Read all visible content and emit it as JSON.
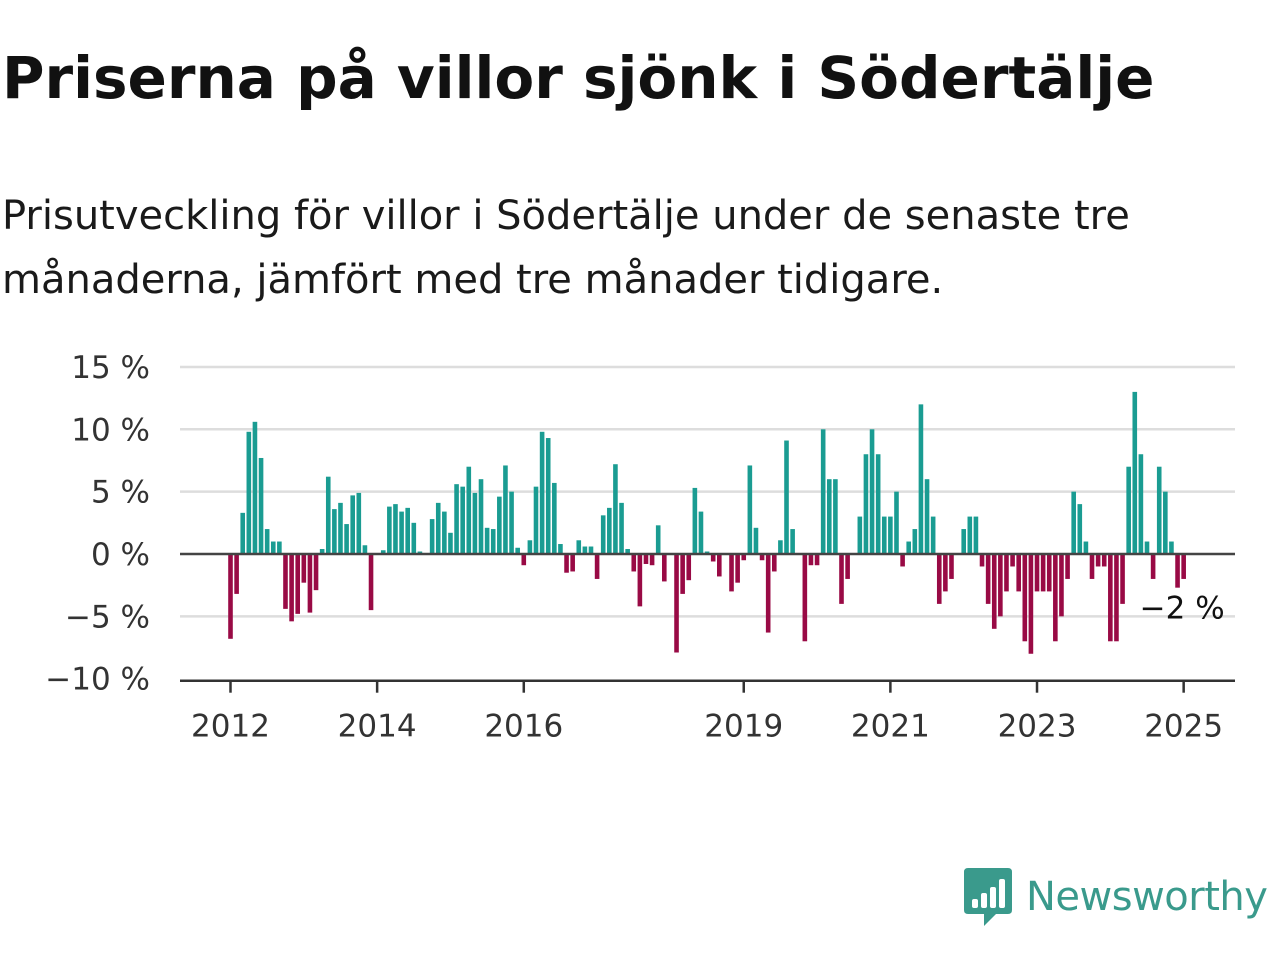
{
  "title": "Priserna på villor sjönk i Södertälje",
  "subtitle": "Prisutveckling för villor i Södertälje under de senaste tre månaderna, jämfört med tre månader tidigare.",
  "brand": "Newsworthy",
  "colors": {
    "positive": "#1a9c92",
    "negative": "#990a45",
    "gridline": "#dddddd",
    "zero_line": "#444444",
    "brand": "#3a9a8c"
  },
  "chart_data": {
    "type": "bar",
    "x_start": "2012-01",
    "frequency": "monthly",
    "y_ticks": [
      {
        "value": 15,
        "label": "15 %"
      },
      {
        "value": 10,
        "label": "10 %"
      },
      {
        "value": 5,
        "label": "5 %"
      },
      {
        "value": 0,
        "label": "0 %"
      },
      {
        "value": -5,
        "label": "−5 %"
      },
      {
        "value": -10,
        "label": "−10 %"
      }
    ],
    "x_ticks": [
      {
        "date": "2012-01",
        "label": "2012"
      },
      {
        "date": "2014-01",
        "label": "2014"
      },
      {
        "date": "2016-01",
        "label": "2016"
      },
      {
        "date": "2019-01",
        "label": "2019"
      },
      {
        "date": "2021-01",
        "label": "2021"
      },
      {
        "date": "2023-01",
        "label": "2023"
      },
      {
        "date": "2025-01",
        "label": "2025"
      }
    ],
    "ylim": [
      -10,
      15
    ],
    "grid": true,
    "last_value_label": "−2 %",
    "values": [
      -6.8,
      -3.2,
      3.3,
      9.8,
      10.6,
      7.7,
      2.0,
      1.0,
      1.0,
      -4.4,
      -5.4,
      -4.8,
      -2.3,
      -4.7,
      -2.9,
      0.4,
      6.2,
      3.6,
      4.1,
      2.4,
      4.7,
      4.9,
      0.7,
      -4.5,
      0.0,
      0.3,
      3.8,
      4.0,
      3.4,
      3.7,
      2.5,
      0.2,
      0.0,
      2.8,
      4.1,
      3.4,
      1.7,
      5.6,
      5.4,
      7.0,
      4.9,
      6.0,
      2.1,
      2.0,
      4.6,
      7.1,
      5.0,
      0.5,
      -0.9,
      1.1,
      5.4,
      9.8,
      9.3,
      5.7,
      0.8,
      -1.5,
      -1.4,
      1.1,
      0.6,
      0.6,
      -2.0,
      3.1,
      3.7,
      7.2,
      4.1,
      0.4,
      -1.4,
      -4.2,
      -0.8,
      -0.9,
      2.3,
      -2.2,
      0.0,
      -7.9,
      -3.2,
      -2.1,
      5.3,
      3.4,
      0.2,
      -0.6,
      -1.8,
      0.0,
      -3.0,
      -2.3,
      -0.5,
      7.1,
      2.1,
      -0.5,
      -6.3,
      -1.4,
      1.1,
      9.1,
      2.0,
      0.0,
      -7.0,
      -0.9,
      -0.9,
      10.0,
      6.0,
      6.0,
      -4.0,
      -2.0,
      0.0,
      3.0,
      8.0,
      10.0,
      8.0,
      3.0,
      3.0,
      5.0,
      -1.0,
      1.0,
      2.0,
      12.0,
      6.0,
      3.0,
      -4.0,
      -3.0,
      -2.0,
      0.0,
      2.0,
      3.0,
      3.0,
      -1.0,
      -4.0,
      -6.0,
      -5.0,
      -3.0,
      -1.0,
      -3.0,
      -7.0,
      -8.0,
      -3.0,
      -3.0,
      -3.0,
      -7.0,
      -5.0,
      -2.0,
      5.0,
      4.0,
      1.0,
      -2.0,
      -1.0,
      -1.0,
      -7.0,
      -7.0,
      -4.0,
      7.0,
      13.0,
      8.0,
      1.0,
      -2.0,
      7.0,
      5.0,
      1.0,
      -2.7,
      -2.0
    ]
  }
}
